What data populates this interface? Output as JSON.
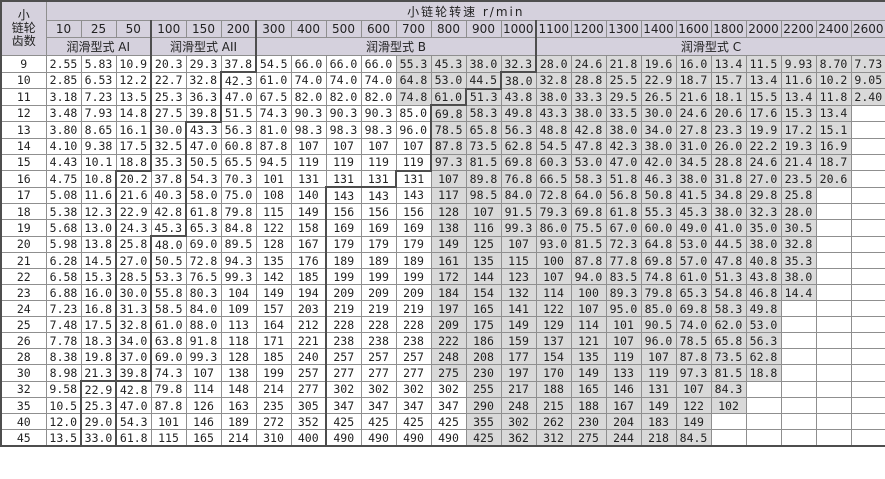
{
  "table": {
    "teeth_header_lines": [
      "小",
      "链轮",
      "齿数"
    ],
    "speed_title": "小链轮转速  r/min",
    "speeds": [
      "10",
      "25",
      "50",
      "100",
      "150",
      "200",
      "300",
      "400",
      "500",
      "600",
      "700",
      "800",
      "900",
      "1000",
      "1100",
      "1200",
      "1300",
      "1400",
      "1600",
      "1800",
      "2000",
      "2200",
      "2400",
      "2600"
    ],
    "lube_zones": [
      {
        "label": "润滑型式 AI",
        "span": 3
      },
      {
        "label": "润滑型式 AII",
        "span": 3
      },
      {
        "label": "润滑型式 B",
        "span": 8
      },
      {
        "label": "润滑型式 C",
        "span": 10
      }
    ],
    "colors": {
      "header_bg": "#d5d1dd",
      "shaded_cell_bg": "#d9d9d9",
      "grid_line": "#8f8f8f",
      "zone_line": "#4e4e4e",
      "text": "#222222"
    },
    "rows": [
      {
        "t": "9",
        "v": [
          "2.55",
          "5.83",
          "10.9",
          "20.3",
          "29.3",
          "37.8",
          "54.5",
          "66.0",
          "66.0",
          "66.0",
          "55.3",
          "45.3",
          "38.0",
          "32.3",
          "28.0",
          "24.6",
          "21.8",
          "19.6",
          "16.0",
          "13.4",
          "11.5",
          "9.93",
          "8.70",
          "7.73"
        ],
        "gray": [
          10,
          23
        ],
        "thick": [
          2,
          5,
          13
        ]
      },
      {
        "t": "10",
        "v": [
          "2.85",
          "6.53",
          "12.2",
          "22.7",
          "32.8",
          "42.3",
          "61.0",
          "74.0",
          "74.0",
          "74.0",
          "64.8",
          "53.0",
          "44.5",
          "38.0",
          "32.8",
          "28.8",
          "25.5",
          "22.9",
          "18.7",
          "15.7",
          "13.4",
          "11.6",
          "10.2",
          "9.05"
        ],
        "gray": [
          10,
          23
        ],
        "thick": [
          2,
          4,
          12
        ]
      },
      {
        "t": "11",
        "v": [
          "3.18",
          "7.23",
          "13.5",
          "25.3",
          "36.3",
          "47.0",
          "67.5",
          "82.0",
          "82.0",
          "82.0",
          "74.8",
          "61.0",
          "51.3",
          "43.8",
          "38.0",
          "33.3",
          "29.5",
          "26.5",
          "21.6",
          "18.1",
          "15.5",
          "13.4",
          "11.8",
          "2.40"
        ],
        "gray": [
          10,
          23
        ],
        "thick": [
          2,
          4,
          11
        ]
      },
      {
        "t": "12",
        "v": [
          "3.48",
          "7.93",
          "14.8",
          "27.5",
          "39.8",
          "51.5",
          "74.3",
          "90.3",
          "90.3",
          "90.3",
          "85.0",
          "69.8",
          "58.3",
          "49.8",
          "43.3",
          "38.0",
          "33.5",
          "30.0",
          "24.6",
          "20.6",
          "17.6",
          "15.3",
          "13.4",
          ""
        ],
        "gray": [
          11,
          22
        ],
        "thick": [
          2,
          4,
          10
        ]
      },
      {
        "t": "13",
        "v": [
          "3.80",
          "8.65",
          "16.1",
          "30.0",
          "43.3",
          "56.3",
          "81.0",
          "98.3",
          "98.3",
          "98.3",
          "96.0",
          "78.5",
          "65.8",
          "56.3",
          "48.8",
          "42.8",
          "38.0",
          "34.0",
          "27.8",
          "23.3",
          "19.9",
          "17.2",
          "15.1",
          ""
        ],
        "gray": [
          11,
          22
        ],
        "thick": [
          2,
          3,
          10
        ]
      },
      {
        "t": "14",
        "v": [
          "4.10",
          "9.38",
          "17.5",
          "32.5",
          "47.0",
          "60.8",
          "87.8",
          "107",
          "107",
          "107",
          "107",
          "87.8",
          "73.5",
          "62.8",
          "54.5",
          "47.8",
          "42.3",
          "38.0",
          "31.0",
          "26.0",
          "22.2",
          "19.3",
          "16.9",
          ""
        ],
        "gray": [
          11,
          22
        ],
        "thick": [
          2,
          3,
          10
        ]
      },
      {
        "t": "15",
        "v": [
          "4.43",
          "10.1",
          "18.8",
          "35.3",
          "50.5",
          "65.5",
          "94.5",
          "119",
          "119",
          "119",
          "119",
          "97.3",
          "81.5",
          "69.8",
          "60.3",
          "53.0",
          "47.0",
          "42.0",
          "34.5",
          "28.8",
          "24.6",
          "21.4",
          "18.7",
          ""
        ],
        "gray": [
          11,
          22
        ],
        "thick": [
          2,
          3,
          10
        ]
      },
      {
        "t": "16",
        "v": [
          "4.75",
          "10.8",
          "20.2",
          "37.8",
          "54.3",
          "70.3",
          "101",
          "131",
          "131",
          "131",
          "131",
          "107",
          "89.8",
          "76.8",
          "66.5",
          "58.3",
          "51.8",
          "46.3",
          "38.0",
          "31.8",
          "27.0",
          "23.5",
          "20.6",
          ""
        ],
        "gray": [
          11,
          22
        ],
        "thick": [
          1,
          3,
          9
        ]
      },
      {
        "t": "17",
        "v": [
          "5.08",
          "11.6",
          "21.6",
          "40.3",
          "58.0",
          "75.0",
          "108",
          "140",
          "143",
          "143",
          "143",
          "117",
          "98.5",
          "84.0",
          "72.8",
          "64.0",
          "56.8",
          "50.8",
          "41.5",
          "34.8",
          "29.8",
          "25.8",
          "",
          ""
        ],
        "gray": [
          11,
          21
        ],
        "thick": [
          1,
          3,
          7
        ]
      },
      {
        "t": "18",
        "v": [
          "5.38",
          "12.3",
          "22.9",
          "42.8",
          "61.8",
          "79.8",
          "115",
          "149",
          "156",
          "156",
          "156",
          "128",
          "107",
          "91.5",
          "79.3",
          "69.8",
          "61.8",
          "55.3",
          "45.3",
          "38.0",
          "32.3",
          "28.0",
          "",
          ""
        ],
        "gray": [
          11,
          21
        ],
        "thick": [
          1,
          3,
          7
        ]
      },
      {
        "t": "19",
        "v": [
          "5.68",
          "13.0",
          "24.3",
          "45.3",
          "65.3",
          "84.8",
          "122",
          "158",
          "169",
          "169",
          "169",
          "138",
          "116",
          "99.3",
          "86.0",
          "75.5",
          "67.0",
          "60.0",
          "49.0",
          "41.0",
          "35.0",
          "30.5",
          "",
          ""
        ],
        "gray": [
          11,
          21
        ],
        "thick": [
          1,
          3,
          7
        ]
      },
      {
        "t": "20",
        "v": [
          "5.98",
          "13.8",
          "25.8",
          "48.0",
          "69.0",
          "89.5",
          "128",
          "167",
          "179",
          "179",
          "179",
          "149",
          "125",
          "107",
          "93.0",
          "81.5",
          "72.3",
          "64.8",
          "53.0",
          "44.5",
          "38.0",
          "32.8",
          "",
          ""
        ],
        "gray": [
          11,
          21
        ],
        "thick": [
          1,
          2,
          7
        ]
      },
      {
        "t": "21",
        "v": [
          "6.28",
          "14.5",
          "27.0",
          "50.5",
          "72.8",
          "94.3",
          "135",
          "176",
          "189",
          "189",
          "189",
          "161",
          "135",
          "115",
          "100",
          "87.8",
          "77.8",
          "69.8",
          "57.0",
          "47.8",
          "40.8",
          "35.3",
          "",
          ""
        ],
        "gray": [
          11,
          21
        ],
        "thick": [
          1,
          2,
          7
        ]
      },
      {
        "t": "22",
        "v": [
          "6.58",
          "15.3",
          "28.5",
          "53.3",
          "76.5",
          "99.3",
          "142",
          "185",
          "199",
          "199",
          "199",
          "172",
          "144",
          "123",
          "107",
          "94.0",
          "83.5",
          "74.8",
          "61.0",
          "51.3",
          "43.8",
          "38.0",
          "",
          ""
        ],
        "gray": [
          11,
          21
        ],
        "thick": [
          1,
          2,
          7
        ]
      },
      {
        "t": "23",
        "v": [
          "6.88",
          "16.0",
          "30.0",
          "55.8",
          "80.3",
          "104",
          "149",
          "194",
          "209",
          "209",
          "209",
          "184",
          "154",
          "132",
          "114",
          "100",
          "89.3",
          "79.8",
          "65.3",
          "54.8",
          "46.8",
          "14.4",
          "",
          ""
        ],
        "gray": [
          11,
          21
        ],
        "thick": [
          1,
          2,
          7
        ]
      },
      {
        "t": "24",
        "v": [
          "7.23",
          "16.8",
          "31.3",
          "58.5",
          "84.0",
          "109",
          "157",
          "203",
          "219",
          "219",
          "219",
          "197",
          "165",
          "141",
          "122",
          "107",
          "95.0",
          "85.0",
          "69.8",
          "58.3",
          "49.8",
          "",
          "",
          ""
        ],
        "gray": [
          11,
          20
        ],
        "thick": [
          1,
          2,
          7
        ]
      },
      {
        "t": "25",
        "v": [
          "7.48",
          "17.5",
          "32.8",
          "61.0",
          "88.0",
          "113",
          "164",
          "212",
          "228",
          "228",
          "228",
          "209",
          "175",
          "149",
          "129",
          "114",
          "101",
          "90.5",
          "74.0",
          "62.0",
          "53.0",
          "",
          "",
          ""
        ],
        "gray": [
          11,
          20
        ],
        "thick": [
          1,
          2,
          7
        ]
      },
      {
        "t": "26",
        "v": [
          "7.78",
          "18.3",
          "34.0",
          "63.8",
          "91.8",
          "118",
          "171",
          "221",
          "238",
          "238",
          "238",
          "222",
          "186",
          "159",
          "137",
          "121",
          "107",
          "96.0",
          "78.5",
          "65.8",
          "56.3",
          "",
          "",
          ""
        ],
        "gray": [
          11,
          20
        ],
        "thick": [
          1,
          2,
          7
        ]
      },
      {
        "t": "28",
        "v": [
          "8.38",
          "19.8",
          "37.0",
          "69.0",
          "99.3",
          "128",
          "185",
          "240",
          "257",
          "257",
          "257",
          "248",
          "208",
          "177",
          "154",
          "135",
          "119",
          "107",
          "87.8",
          "73.5",
          "62.8",
          "",
          "",
          ""
        ],
        "gray": [
          11,
          20
        ],
        "thick": [
          1,
          2,
          7
        ]
      },
      {
        "t": "30",
        "v": [
          "8.98",
          "21.3",
          "39.8",
          "74.3",
          "107",
          "138",
          "199",
          "257",
          "277",
          "277",
          "277",
          "275",
          "230",
          "197",
          "170",
          "149",
          "133",
          "119",
          "97.3",
          "81.5",
          "18.8",
          "",
          "",
          ""
        ],
        "gray": [
          11,
          20
        ],
        "thick": [
          1,
          2,
          7
        ]
      },
      {
        "t": "32",
        "v": [
          "9.58",
          "22.9",
          "42.8",
          "79.8",
          "114",
          "148",
          "214",
          "277",
          "302",
          "302",
          "302",
          "302",
          "255",
          "217",
          "188",
          "165",
          "146",
          "131",
          "107",
          "84.3",
          "",
          "",
          "",
          ""
        ],
        "gray": [
          12,
          19
        ],
        "thick": [
          0,
          1,
          7
        ]
      },
      {
        "t": "35",
        "v": [
          "10.5",
          "25.3",
          "47.0",
          "87.8",
          "126",
          "163",
          "235",
          "305",
          "347",
          "347",
          "347",
          "347",
          "290",
          "248",
          "215",
          "188",
          "167",
          "149",
          "122",
          "102",
          "",
          "",
          "",
          ""
        ],
        "gray": [
          12,
          19
        ],
        "thick": [
          0,
          1,
          7
        ]
      },
      {
        "t": "40",
        "v": [
          "12.0",
          "29.0",
          "54.3",
          "101",
          "146",
          "189",
          "272",
          "352",
          "425",
          "425",
          "425",
          "425",
          "355",
          "302",
          "262",
          "230",
          "204",
          "183",
          "149",
          "",
          "",
          "",
          "",
          ""
        ],
        "gray": [
          12,
          18
        ],
        "thick": [
          0,
          1,
          7
        ]
      },
      {
        "t": "45",
        "v": [
          "13.5",
          "33.0",
          "61.8",
          "115",
          "165",
          "214",
          "310",
          "400",
          "490",
          "490",
          "490",
          "490",
          "425",
          "362",
          "312",
          "275",
          "244",
          "218",
          "84.5",
          "",
          "",
          "",
          "",
          ""
        ],
        "gray": [
          12,
          18
        ],
        "thick": [
          0,
          1,
          7
        ]
      }
    ]
  }
}
